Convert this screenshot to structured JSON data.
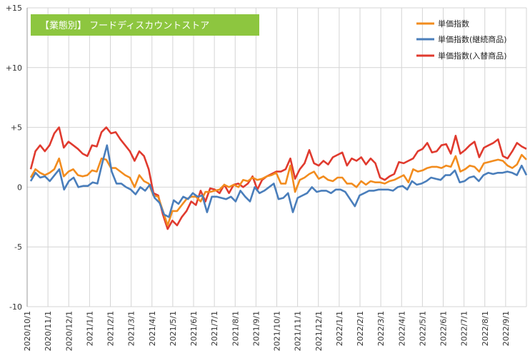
{
  "chart_data": {
    "type": "line",
    "title": "【業態別】 フードディスカウントストア",
    "title_bg": "#8DC63F",
    "ylim": [
      -10,
      15
    ],
    "yticks": [
      "+15",
      "+10",
      "+5",
      "0",
      "-5",
      "-10"
    ],
    "ytick_values": [
      15,
      10,
      5,
      0,
      -5,
      -10
    ],
    "xlabels": [
      "2020/10/1",
      "2020/11/1",
      "2020/12/1",
      "2021/1/1",
      "2021/2/1",
      "2021/3/1",
      "2021/4/1",
      "2021/5/1",
      "2021/6/1",
      "2021/7/1",
      "2021/8/1",
      "2021/9/1",
      "2021/10/1",
      "2021/11/1",
      "2021/12/1",
      "2022/1/1",
      "2022/2/1",
      "2022/3/1",
      "2022/4/1",
      "2022/5/1",
      "2022/6/1",
      "2022/7/1",
      "2022/8/1",
      "2022/9/1"
    ],
    "grid": true,
    "legend_position": "top-right",
    "series": [
      {
        "name": "単価指数",
        "color": "#F28C1E",
        "values": [
          0.8,
          1.5,
          1.2,
          1.0,
          1.2,
          1.5,
          2.4,
          0.9,
          1.3,
          1.5,
          1.0,
          0.9,
          1.0,
          1.4,
          1.3,
          2.4,
          2.3,
          1.6,
          1.6,
          1.3,
          1.0,
          0.8,
          0.0,
          1.0,
          0.5,
          0.3,
          -0.7,
          -0.8,
          -2.0,
          -3.2,
          -2.0,
          -2.0,
          -1.5,
          -1.0,
          -0.8,
          -0.8,
          -1.2,
          -0.4,
          -0.4,
          -0.3,
          -0.2,
          0.2,
          0.0,
          0.2,
          0.0,
          0.6,
          0.5,
          0.8,
          0.6,
          0.7,
          0.9,
          1.0,
          1.2,
          0.3,
          0.3,
          1.8,
          -0.4,
          0.6,
          0.8,
          1.1,
          1.3,
          0.7,
          0.9,
          0.6,
          0.5,
          0.8,
          0.8,
          0.3,
          0.3,
          0.0,
          0.5,
          0.2,
          0.5,
          0.4,
          0.4,
          0.3,
          0.5,
          0.6,
          0.8,
          1.0,
          0.4,
          1.5,
          1.3,
          1.4,
          1.6,
          1.7,
          1.7,
          1.6,
          1.8,
          1.7,
          2.6,
          1.3,
          1.5,
          1.8,
          1.7,
          1.3,
          2.0,
          2.1,
          2.2,
          2.3,
          2.2,
          1.8,
          1.6,
          1.9,
          2.7,
          2.3
        ]
      },
      {
        "name": "単価指数(継続商品)",
        "color": "#4A7EBB",
        "values": [
          0.5,
          1.2,
          0.8,
          0.9,
          0.5,
          1.0,
          1.5,
          -0.2,
          0.5,
          0.8,
          0.0,
          0.1,
          0.1,
          0.4,
          0.3,
          2.0,
          3.5,
          1.3,
          0.3,
          0.3,
          0.0,
          -0.2,
          -0.6,
          0.0,
          -0.3,
          0.2,
          -0.9,
          -1.3,
          -2.3,
          -2.5,
          -1.1,
          -1.4,
          -0.8,
          -1.0,
          -0.5,
          -0.8,
          -0.7,
          -2.1,
          -0.8,
          -0.8,
          -0.9,
          -1.0,
          -0.8,
          -1.2,
          -0.3,
          -0.8,
          -1.2,
          0.0,
          -0.5,
          -0.3,
          0.0,
          0.3,
          -1.0,
          -0.9,
          -0.5,
          -2.1,
          -0.9,
          -0.7,
          -0.5,
          0.0,
          -0.4,
          -0.3,
          -0.3,
          -0.5,
          -0.2,
          -0.2,
          -0.4,
          -1.0,
          -1.6,
          -0.7,
          -0.5,
          -0.3,
          -0.3,
          -0.2,
          -0.2,
          -0.2,
          -0.3,
          0.0,
          0.1,
          -0.2,
          0.5,
          0.2,
          0.3,
          0.5,
          0.8,
          0.7,
          0.6,
          1.0,
          1.0,
          1.4,
          0.4,
          0.5,
          0.8,
          0.9,
          0.5,
          1.0,
          1.2,
          1.1,
          1.2,
          1.2,
          1.3,
          1.2,
          1.0,
          1.8,
          1.0
        ]
      },
      {
        "name": "単価指数(入替商品)",
        "color": "#E03A2E",
        "values": [
          1.5,
          3.0,
          3.5,
          3.0,
          3.5,
          4.5,
          5.0,
          3.3,
          3.8,
          3.5,
          3.2,
          2.8,
          2.6,
          3.5,
          3.4,
          4.6,
          5.0,
          4.5,
          4.6,
          4.0,
          3.5,
          3.0,
          2.2,
          3.0,
          2.6,
          1.5,
          -0.5,
          -0.7,
          -2.3,
          -3.5,
          -2.8,
          -3.2,
          -2.5,
          -2.0,
          -1.2,
          -1.5,
          -0.3,
          -1.2,
          -0.1,
          -0.2,
          -0.5,
          0.2,
          -0.5,
          0.2,
          0.3,
          0.0,
          0.3,
          0.9,
          -0.2,
          0.6,
          0.9,
          1.1,
          1.3,
          1.3,
          1.5,
          2.4,
          0.7,
          1.5,
          2.0,
          3.1,
          2.0,
          1.8,
          2.2,
          1.9,
          2.5,
          2.7,
          2.9,
          1.8,
          2.4,
          2.2,
          2.5,
          1.9,
          2.4,
          2.0,
          0.8,
          0.6,
          0.9,
          1.1,
          2.1,
          2.0,
          2.2,
          2.4,
          3.0,
          3.2,
          3.7,
          2.9,
          3.0,
          3.5,
          3.6,
          2.8,
          4.3,
          2.8,
          3.1,
          3.5,
          3.8,
          2.5,
          3.3,
          3.5,
          3.7,
          4.0,
          2.6,
          2.4,
          3.0,
          3.7,
          3.4,
          3.2
        ]
      }
    ]
  }
}
